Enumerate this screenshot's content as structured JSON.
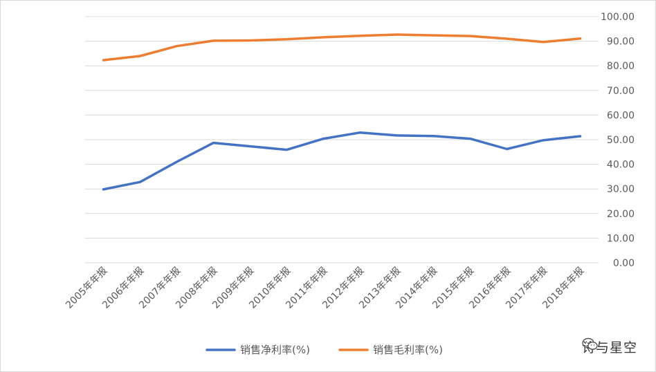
{
  "chart_data": {
    "type": "line",
    "categories": [
      "2005年年报",
      "2006年年报",
      "2007年年报",
      "2008年年报",
      "2009年年报",
      "2010年年报",
      "2011年年报",
      "2012年年报",
      "2013年年报",
      "2014年年报",
      "2015年年报",
      "2016年年报",
      "2017年年报",
      "2018年年报"
    ],
    "series": [
      {
        "name": "销售净利率(%)",
        "color": "#4472c4",
        "values": [
          29.8,
          32.8,
          41.0,
          48.7,
          47.3,
          45.9,
          50.4,
          52.9,
          51.7,
          51.5,
          50.4,
          46.2,
          49.8,
          51.4
        ]
      },
      {
        "name": "销售毛利率(%)",
        "color": "#ed7d31",
        "values": [
          82.3,
          84.0,
          88.0,
          90.2,
          90.3,
          90.8,
          91.6,
          92.2,
          92.7,
          92.4,
          92.1,
          91.0,
          89.7,
          91.1
        ]
      }
    ],
    "y_ticks": [
      "0.00",
      "10.00",
      "20.00",
      "30.00",
      "40.00",
      "50.00",
      "60.00",
      "70.00",
      "80.00",
      "90.00",
      "100.00"
    ],
    "ylim": [
      0,
      100
    ],
    "y_axis_side": "right",
    "grid": true,
    "legend": "bottom"
  },
  "watermark": {
    "text": "诗与星空",
    "icon": "wechat-icon"
  }
}
